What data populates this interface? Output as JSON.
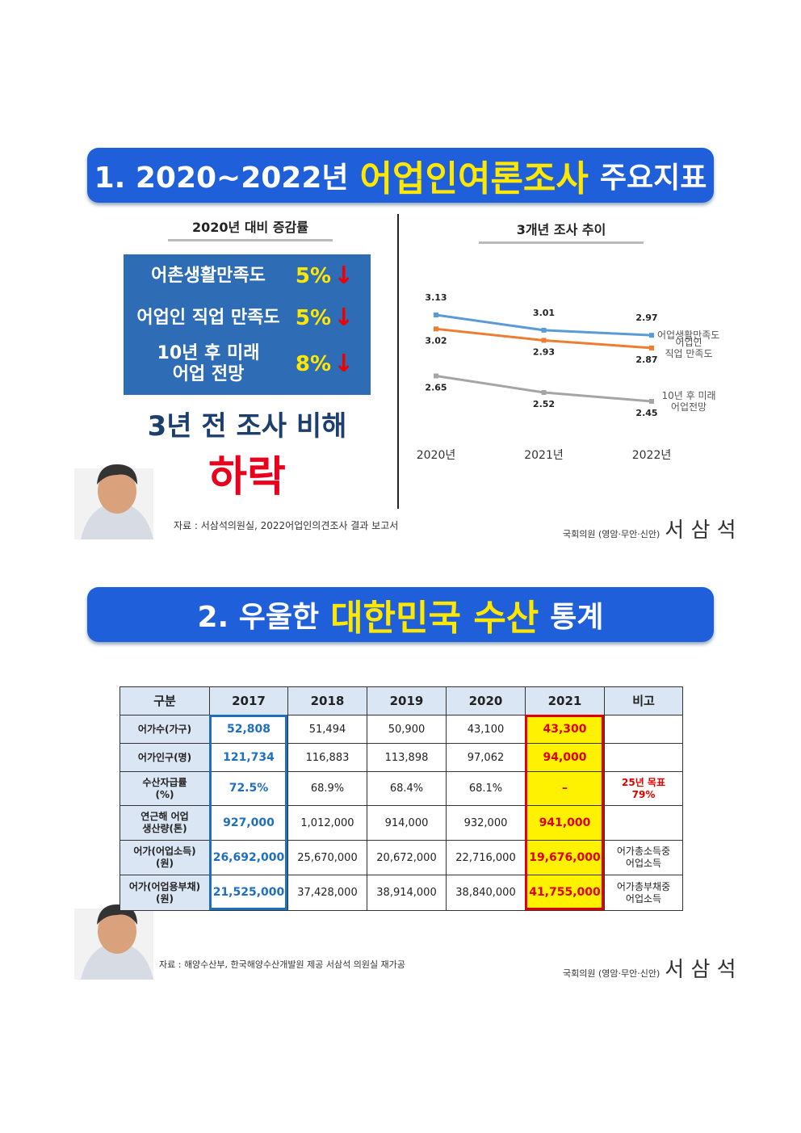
{
  "section1": {
    "title": {
      "prefix": "1. 2020~2022년",
      "highlight": "어업인여론조사",
      "suffix": "주요지표"
    },
    "left": {
      "subtitle": "2020년 대비 증감률",
      "items": [
        {
          "label": "어촌생활만족도",
          "value": "5%"
        },
        {
          "label": "어업인 직업 만족도",
          "value": "5%"
        },
        {
          "label": "10년 후 미래\n어업 전망",
          "value": "8%"
        }
      ],
      "summary": "3년 전 조사 비해",
      "result": "하락"
    },
    "source": "자료 : 서삼석의원실, 2022어업인의견조사 결과 보고서",
    "signature": {
      "office": "국회의원 (영암·무안·신안)",
      "name": "서 삼 석"
    }
  },
  "chart_data": {
    "type": "line",
    "title": "3개년 조사 추이",
    "categories": [
      "2020년",
      "2021년",
      "2022년"
    ],
    "series": [
      {
        "name": "어업생활만족도",
        "color": "#5b9bd5",
        "values": [
          3.13,
          3.01,
          2.97
        ]
      },
      {
        "name": "어업인\n직업 만족도",
        "color": "#ed7d31",
        "values": [
          3.02,
          2.93,
          2.87
        ]
      },
      {
        "name": "10년 후 미래\n어업전망",
        "color": "#a5a5a5",
        "values": [
          2.65,
          2.52,
          2.45
        ]
      }
    ]
  },
  "section2": {
    "title": {
      "prefix": "2. 우울한",
      "highlight": "대한민국 수산",
      "suffix": "통계"
    },
    "table": {
      "header": [
        "구분",
        "2017",
        "2018",
        "2019",
        "2020",
        "2021",
        "비고"
      ],
      "rows": [
        [
          "어가수(가구)",
          "52,808",
          "51,494",
          "50,900",
          "43,100",
          "43,300",
          null
        ],
        [
          "어가인구(명)",
          "121,734",
          "116,883",
          "113,898",
          "97,062",
          "94,000",
          null
        ],
        [
          "수산자급률\n(%)",
          "72.5%",
          "68.9%",
          "68.4%",
          "68.1%",
          "–",
          "25년 목표\n79%"
        ],
        [
          "연근해 어업\n생산량(톤)",
          "927,000",
          "1,012,000",
          "914,000",
          "932,000",
          "941,000",
          null
        ],
        [
          "어가(어업소득)\n(원)",
          "26,692,000",
          "25,670,000",
          "20,672,000",
          "22,716,000",
          "19,676,000",
          "어가총소득중\n어업소득"
        ],
        [
          "어가(어업용부채)\n(원)",
          "21,525,000",
          "37,428,000",
          "38,914,000",
          "38,840,000",
          "41,755,000",
          "어가총부채중\n어업소득"
        ]
      ]
    },
    "source": "자료 : 해양수산부, 한국해양수산개발원 제공 서삼석 의원실 재가공",
    "signature": {
      "office": "국회의원 (영암·무안·신안)",
      "name": "서 삼 석"
    }
  }
}
